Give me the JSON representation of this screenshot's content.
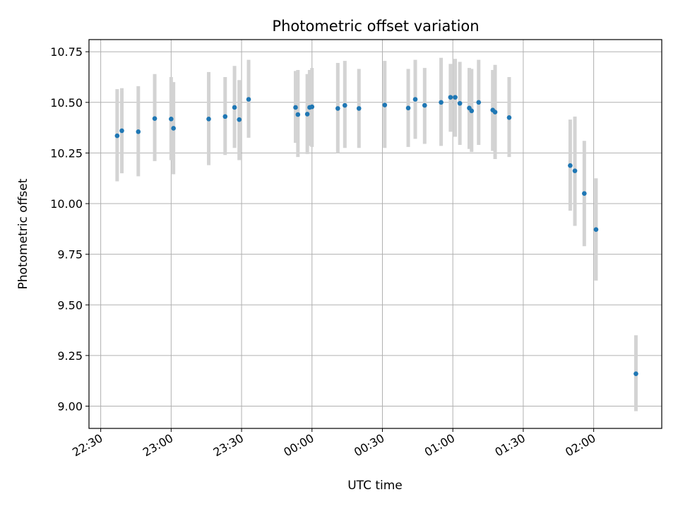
{
  "chart_data": {
    "type": "scatter",
    "title": "Photometric offset variation",
    "xlabel": "UTC time",
    "ylabel": "Photometric offset",
    "x_axis_kind": "time",
    "xlim": [
      "22:25",
      "02:29"
    ],
    "ylim": [
      8.89,
      10.81
    ],
    "x_ticks": [
      "22:30",
      "23:00",
      "23:30",
      "00:00",
      "00:30",
      "01:00",
      "01:30",
      "02:00"
    ],
    "y_ticks": [
      9.0,
      9.25,
      9.5,
      9.75,
      10.0,
      10.25,
      10.5,
      10.75
    ],
    "y_tick_labels": [
      "9.00",
      "9.25",
      "9.50",
      "9.75",
      "10.00",
      "10.25",
      "10.50",
      "10.75"
    ],
    "grid": true,
    "marker_color": "#1f77b4",
    "errorbar_color": "#d3d3d3",
    "points": [
      {
        "x": "22:37",
        "y": 10.335,
        "ylow": 10.11,
        "yhigh": 10.565
      },
      {
        "x": "22:39",
        "y": 10.36,
        "ylow": 10.15,
        "yhigh": 10.57
      },
      {
        "x": "22:46",
        "y": 10.355,
        "ylow": 10.135,
        "yhigh": 10.58
      },
      {
        "x": "22:53",
        "y": 10.42,
        "ylow": 10.21,
        "yhigh": 10.64
      },
      {
        "x": "23:00",
        "y": 10.418,
        "ylow": 10.215,
        "yhigh": 10.625
      },
      {
        "x": "23:01",
        "y": 10.372,
        "ylow": 10.145,
        "yhigh": 10.6
      },
      {
        "x": "23:16",
        "y": 10.418,
        "ylow": 10.19,
        "yhigh": 10.65
      },
      {
        "x": "23:23",
        "y": 10.43,
        "ylow": 10.24,
        "yhigh": 10.625
      },
      {
        "x": "23:27",
        "y": 10.475,
        "ylow": 10.275,
        "yhigh": 10.68
      },
      {
        "x": "23:29",
        "y": 10.415,
        "ylow": 10.215,
        "yhigh": 10.61
      },
      {
        "x": "23:33",
        "y": 10.515,
        "ylow": 10.325,
        "yhigh": 10.71
      },
      {
        "x": "23:53",
        "y": 10.475,
        "ylow": 10.3,
        "yhigh": 10.655
      },
      {
        "x": "23:54",
        "y": 10.44,
        "ylow": 10.23,
        "yhigh": 10.66
      },
      {
        "x": "23:58",
        "y": 10.442,
        "ylow": 10.245,
        "yhigh": 10.64
      },
      {
        "x": "23:59",
        "y": 10.475,
        "ylow": 10.285,
        "yhigh": 10.66
      },
      {
        "x": "00:00",
        "y": 10.478,
        "ylow": 10.28,
        "yhigh": 10.67
      },
      {
        "x": "00:11",
        "y": 10.47,
        "ylow": 10.25,
        "yhigh": 10.695
      },
      {
        "x": "00:14",
        "y": 10.485,
        "ylow": 10.275,
        "yhigh": 10.705
      },
      {
        "x": "00:20",
        "y": 10.47,
        "ylow": 10.275,
        "yhigh": 10.665
      },
      {
        "x": "00:31",
        "y": 10.487,
        "ylow": 10.275,
        "yhigh": 10.705
      },
      {
        "x": "00:41",
        "y": 10.472,
        "ylow": 10.28,
        "yhigh": 10.665
      },
      {
        "x": "00:44",
        "y": 10.515,
        "ylow": 10.32,
        "yhigh": 10.71
      },
      {
        "x": "00:48",
        "y": 10.485,
        "ylow": 10.295,
        "yhigh": 10.67
      },
      {
        "x": "00:55",
        "y": 10.5,
        "ylow": 10.285,
        "yhigh": 10.72
      },
      {
        "x": "00:59",
        "y": 10.525,
        "ylow": 10.355,
        "yhigh": 10.69
      },
      {
        "x": "01:01",
        "y": 10.525,
        "ylow": 10.33,
        "yhigh": 10.715
      },
      {
        "x": "01:03",
        "y": 10.495,
        "ylow": 10.29,
        "yhigh": 10.7
      },
      {
        "x": "01:07",
        "y": 10.472,
        "ylow": 10.27,
        "yhigh": 10.67
      },
      {
        "x": "01:08",
        "y": 10.458,
        "ylow": 10.255,
        "yhigh": 10.665
      },
      {
        "x": "01:11",
        "y": 10.5,
        "ylow": 10.29,
        "yhigh": 10.71
      },
      {
        "x": "01:17",
        "y": 10.462,
        "ylow": 10.26,
        "yhigh": 10.66
      },
      {
        "x": "01:18",
        "y": 10.452,
        "ylow": 10.22,
        "yhigh": 10.685
      },
      {
        "x": "01:24",
        "y": 10.425,
        "ylow": 10.23,
        "yhigh": 10.625
      },
      {
        "x": "01:50",
        "y": 10.188,
        "ylow": 9.965,
        "yhigh": 10.415
      },
      {
        "x": "01:52",
        "y": 10.162,
        "ylow": 9.89,
        "yhigh": 10.43
      },
      {
        "x": "01:56",
        "y": 10.05,
        "ylow": 9.79,
        "yhigh": 10.31
      },
      {
        "x": "02:01",
        "y": 9.872,
        "ylow": 9.62,
        "yhigh": 10.125
      },
      {
        "x": "02:18",
        "y": 9.16,
        "ylow": 8.975,
        "yhigh": 9.35
      }
    ]
  }
}
